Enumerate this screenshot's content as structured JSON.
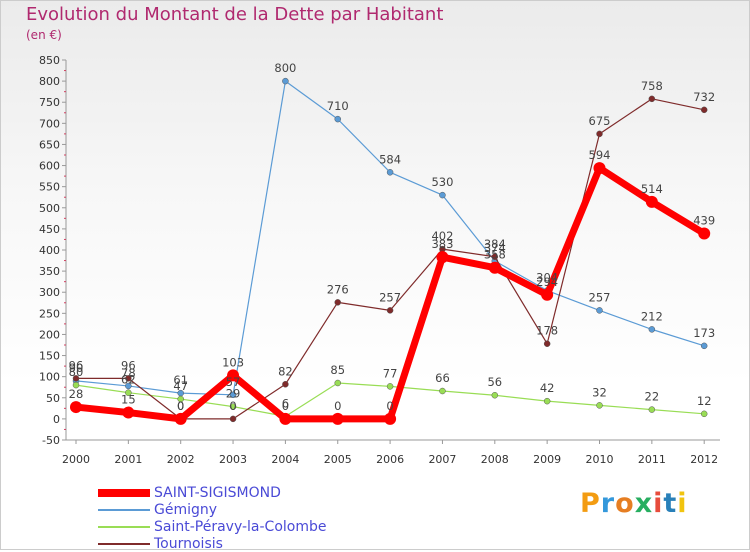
{
  "title": "Evolution du Montant de la Dette par Habitant",
  "subtitle": "(en €)",
  "logo": {
    "text": "Proxiti",
    "colors": [
      "#f39c12",
      "#3498db",
      "#e67e22",
      "#27ae60",
      "#e74c3c",
      "#2980b9",
      "#f1c40f"
    ]
  },
  "chart_data": {
    "type": "line",
    "title": "Evolution du Montant de la Dette par Habitant",
    "ylabel": "(en €)",
    "x": [
      "2000",
      "2001",
      "2002",
      "2003",
      "2004",
      "2005",
      "2006",
      "2007",
      "2008",
      "2009",
      "2010",
      "2011",
      "2012"
    ],
    "ylim": [
      -50,
      850
    ],
    "yticks": [
      -50,
      0,
      50,
      100,
      150,
      200,
      250,
      300,
      350,
      400,
      450,
      500,
      550,
      600,
      650,
      700,
      750,
      800,
      850
    ],
    "grid": false,
    "legend_position": "bottom-left",
    "series": [
      {
        "name": "SAINT-SIGISMOND",
        "color": "#ff0000",
        "stroke_style": "thick",
        "values": [
          28,
          15,
          0,
          103,
          0,
          0,
          0,
          383,
          358,
          294,
          594,
          514,
          439
        ],
        "labels": [
          "28",
          "15",
          "0",
          "103",
          "0",
          "0",
          "0",
          "383",
          "358",
          "294",
          "594",
          "514",
          "439"
        ]
      },
      {
        "name": "Gémigny",
        "color": "#5b9bd5",
        "stroke_style": "thin",
        "values": [
          90,
          78,
          61,
          57,
          800,
          710,
          584,
          530,
          374,
          304,
          257,
          212,
          173
        ],
        "labels": [
          "90",
          "78",
          "61",
          "57",
          "800",
          "710",
          "584",
          "530",
          "374",
          "304",
          "257",
          "212",
          "173"
        ]
      },
      {
        "name": "Saint-Péravy-la-Colombe",
        "color": "#99dd55",
        "stroke_style": "thin",
        "values": [
          80,
          62,
          47,
          29,
          6,
          85,
          77,
          66,
          56,
          42,
          32,
          22,
          12
        ],
        "labels": [
          "80",
          "62",
          "47",
          "29",
          "6",
          "85",
          "77",
          "66",
          "56",
          "42",
          "32",
          "22",
          "12"
        ]
      },
      {
        "name": "Tournoisis",
        "color": "#7f2b2b",
        "stroke_style": "thin",
        "values": [
          96,
          96,
          0,
          0,
          82,
          276,
          257,
          402,
          384,
          178,
          675,
          758,
          732
        ],
        "labels": [
          "96",
          "96",
          "0",
          "0",
          "82",
          "276",
          "257",
          "402",
          "384",
          "178",
          "675",
          "758",
          "732"
        ]
      }
    ]
  }
}
